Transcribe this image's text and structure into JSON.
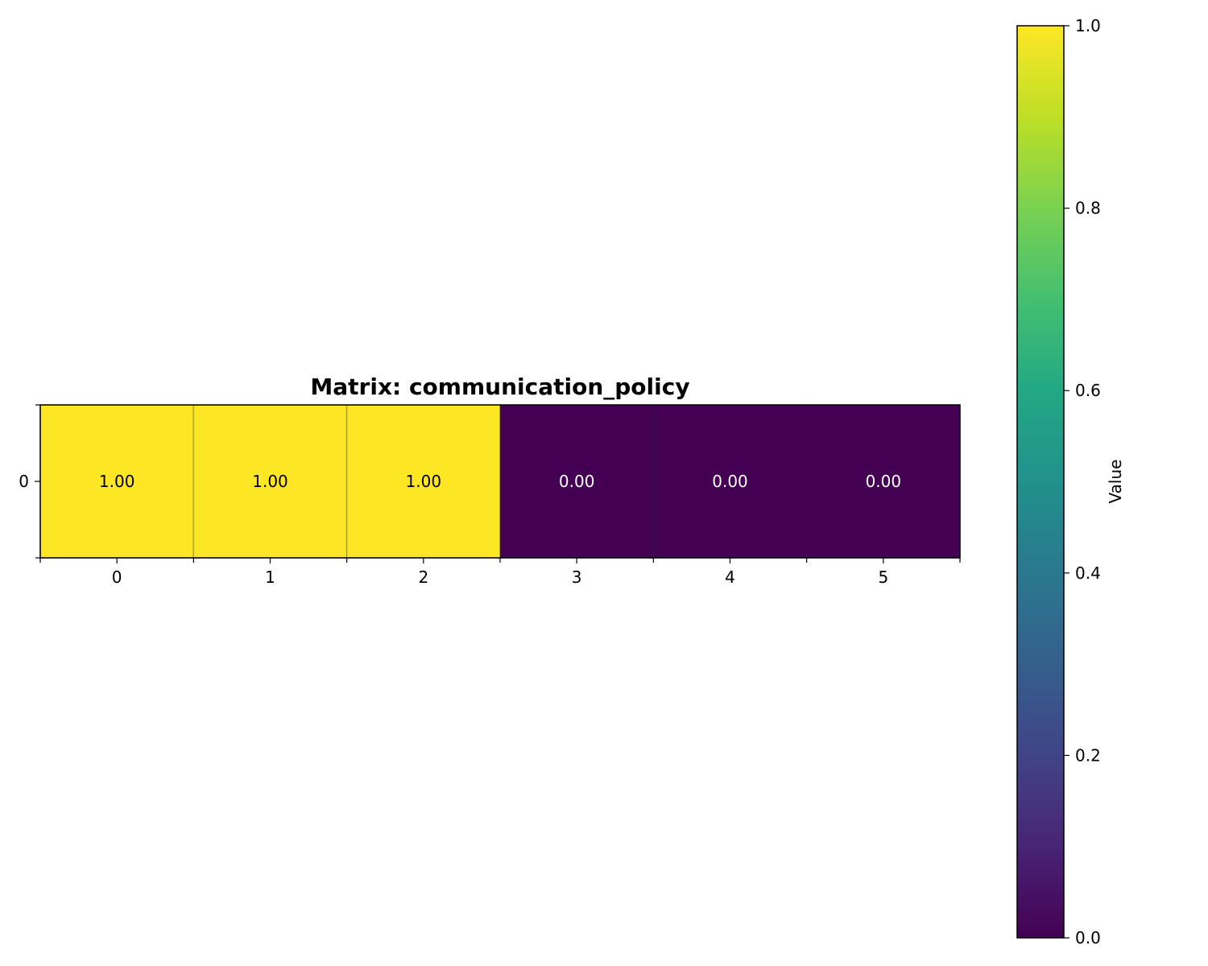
{
  "chart_data": {
    "type": "heatmap",
    "title": "Matrix: communication_policy",
    "x_categories": [
      "0",
      "1",
      "2",
      "3",
      "4",
      "5"
    ],
    "y_categories": [
      "0"
    ],
    "values": [
      [
        1.0,
        1.0,
        1.0,
        0.0,
        0.0,
        0.0
      ]
    ],
    "cell_labels": [
      [
        "1.00",
        "1.00",
        "1.00",
        "0.00",
        "0.00",
        "0.00"
      ]
    ],
    "colormap": "viridis",
    "colorbar": {
      "label": "Value",
      "range": [
        0.0,
        1.0
      ],
      "ticks": [
        0.0,
        0.2,
        0.4,
        0.6,
        0.8,
        1.0
      ],
      "tick_labels": [
        "0.0",
        "0.2",
        "0.4",
        "0.6",
        "0.8",
        "1.0"
      ],
      "placement": "right"
    },
    "colors": {
      "high": "#fde725",
      "low": "#440154"
    }
  }
}
